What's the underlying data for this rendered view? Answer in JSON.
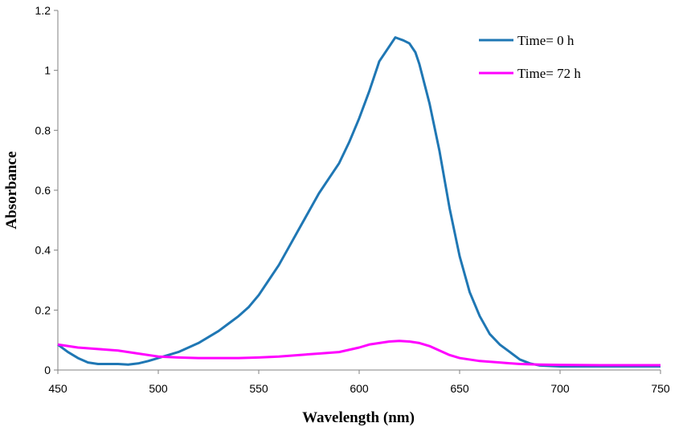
{
  "chart_data": {
    "type": "line",
    "title": "",
    "xlabel": "Wavelength (nm)",
    "ylabel": "Absorbance",
    "xlim": [
      450,
      750
    ],
    "ylim": [
      0,
      1.2
    ],
    "xticks": [
      450,
      500,
      550,
      600,
      650,
      700,
      750
    ],
    "yticks": [
      0,
      0.2,
      0.4,
      0.6,
      0.8,
      1,
      1.2
    ],
    "xtick_labels": [
      "450",
      "500",
      "550",
      "600",
      "650",
      "700",
      "750"
    ],
    "ytick_labels": [
      "0",
      "0.2",
      "0.4",
      "0.6",
      "0.8",
      "1",
      "1.2"
    ],
    "grid": false,
    "legend_position": "top-right",
    "series": [
      {
        "name": "Time= 0 h",
        "color": "#1f77b4",
        "x": [
          450,
          455,
          460,
          465,
          470,
          475,
          480,
          485,
          490,
          495,
          500,
          505,
          510,
          515,
          520,
          525,
          530,
          535,
          540,
          545,
          550,
          555,
          560,
          565,
          570,
          575,
          580,
          585,
          590,
          595,
          600,
          605,
          610,
          615,
          618,
          620,
          622,
          625,
          628,
          630,
          635,
          640,
          645,
          650,
          655,
          660,
          665,
          670,
          675,
          680,
          685,
          690,
          700,
          710,
          720,
          730,
          740,
          750
        ],
        "y": [
          0.085,
          0.06,
          0.04,
          0.025,
          0.02,
          0.02,
          0.02,
          0.018,
          0.022,
          0.03,
          0.04,
          0.05,
          0.06,
          0.075,
          0.09,
          0.11,
          0.13,
          0.155,
          0.18,
          0.21,
          0.25,
          0.3,
          0.35,
          0.41,
          0.47,
          0.53,
          0.59,
          0.64,
          0.69,
          0.76,
          0.84,
          0.93,
          1.03,
          1.08,
          1.11,
          1.105,
          1.1,
          1.09,
          1.06,
          1.02,
          0.89,
          0.73,
          0.54,
          0.38,
          0.26,
          0.18,
          0.12,
          0.085,
          0.06,
          0.035,
          0.022,
          0.015,
          0.012,
          0.012,
          0.012,
          0.012,
          0.012,
          0.012
        ]
      },
      {
        "name": "Time= 72 h",
        "color": "#ff00ff",
        "x": [
          450,
          460,
          470,
          480,
          490,
          500,
          510,
          520,
          530,
          540,
          550,
          560,
          570,
          580,
          590,
          600,
          605,
          610,
          615,
          620,
          625,
          630,
          635,
          640,
          645,
          650,
          660,
          670,
          680,
          690,
          700,
          720,
          740,
          750
        ],
        "y": [
          0.085,
          0.075,
          0.07,
          0.065,
          0.055,
          0.045,
          0.042,
          0.04,
          0.04,
          0.04,
          0.042,
          0.045,
          0.05,
          0.055,
          0.06,
          0.075,
          0.085,
          0.09,
          0.095,
          0.097,
          0.095,
          0.09,
          0.08,
          0.065,
          0.05,
          0.04,
          0.03,
          0.025,
          0.02,
          0.018,
          0.017,
          0.016,
          0.016,
          0.016
        ]
      }
    ]
  }
}
